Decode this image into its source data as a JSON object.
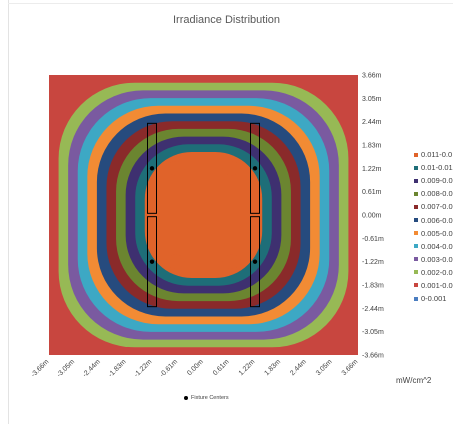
{
  "chart_data": {
    "type": "heatmap",
    "title": "Irradiance Distribution",
    "units": "mW/cm^2",
    "x_ticks": [
      "-3.66m",
      "-3.05m",
      "-2.44m",
      "-1.83m",
      "-1.22m",
      "-0.61m",
      "0.00m",
      "0.61m",
      "1.22m",
      "1.83m",
      "2.44m",
      "3.05m",
      "3.66m"
    ],
    "y_ticks": [
      "3.66m",
      "3.05m",
      "2.44m",
      "1.83m",
      "1.22m",
      "0.61m",
      "0.00m",
      "-0.61m",
      "-1.22m",
      "-1.83m",
      "-2.44m",
      "-3.05m",
      "-3.66m"
    ],
    "xlim": [
      -3.66,
      3.66
    ],
    "ylim": [
      -3.66,
      3.66
    ],
    "levels": [
      {
        "label": "0.011-0.0",
        "color": "#E0632A"
      },
      {
        "label": "0.01-0.01",
        "color": "#1E6E78"
      },
      {
        "label": "0.009-0.0",
        "color": "#3E3070"
      },
      {
        "label": "0.008-0.0",
        "color": "#6B8530"
      },
      {
        "label": "0.007-0.0",
        "color": "#8A2A2A"
      },
      {
        "label": "0.006-0.0",
        "color": "#264B7E"
      },
      {
        "label": "0.005-0.0",
        "color": "#F28B34"
      },
      {
        "label": "0.004-0.0",
        "color": "#3DA8C4"
      },
      {
        "label": "0.003-0.0",
        "color": "#7A5AA0"
      },
      {
        "label": "0.002-0.0",
        "color": "#97B955"
      },
      {
        "label": "0.001-0.0",
        "color": "#C8463F"
      },
      {
        "label": "0-0.001",
        "color": "#4A7DC0"
      }
    ],
    "fixture_centers": [
      {
        "x": -1.22,
        "y": 1.22
      },
      {
        "x": 1.22,
        "y": 1.22
      },
      {
        "x": -1.22,
        "y": -1.22
      },
      {
        "x": 1.22,
        "y": -1.22
      }
    ],
    "fixture_legend": "Fixture Centers",
    "grid": false,
    "legend_position": "right"
  }
}
